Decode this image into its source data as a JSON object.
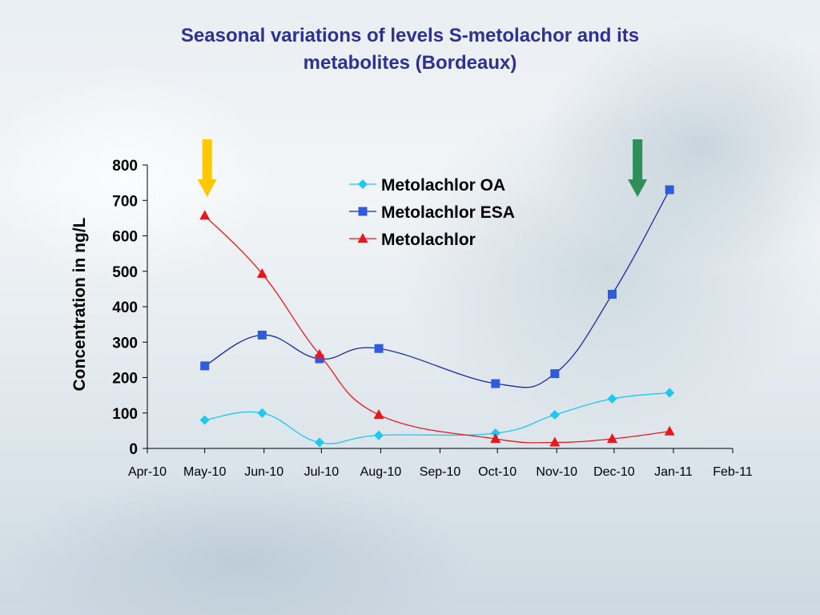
{
  "title_lines": [
    "Seasonal variations of levels S-metolachor and its",
    "metabolites (Bordeaux)"
  ],
  "colors": {
    "title": "#2e3192",
    "oa": "#1ec8f0",
    "esa_line": "#1a2a9e",
    "esa_marker": "#2f5bdc",
    "metolachlor": "#e8171d",
    "arrow_yellow": "#ffc800",
    "arrow_green": "#2e8f5a"
  },
  "arrows": [
    {
      "name": "yellow-arrow",
      "color": "#ffc800",
      "date": "2010-05-01"
    },
    {
      "name": "green-arrow",
      "color": "#2e8f5a",
      "date": "2010-12-12"
    }
  ],
  "chart_data": {
    "type": "line",
    "title": "Seasonal variations of levels S-metolachor and its metabolites (Bordeaux)",
    "xlabel": "",
    "ylabel": "Concentration in ng/L",
    "ylim": [
      0,
      800
    ],
    "yticks": [
      0,
      100,
      200,
      300,
      400,
      500,
      600,
      700,
      800
    ],
    "xticks": [
      {
        "date": "2010-04-01",
        "label": "Apr-10"
      },
      {
        "date": "2010-05-01",
        "label": "May-10"
      },
      {
        "date": "2010-06-01",
        "label": "Jun-10"
      },
      {
        "date": "2010-07-01",
        "label": "Jul-10"
      },
      {
        "date": "2010-08-01",
        "label": "Aug-10"
      },
      {
        "date": "2010-09-01",
        "label": "Sep-10"
      },
      {
        "date": "2010-10-01",
        "label": "Oct-10"
      },
      {
        "date": "2010-11-01",
        "label": "Nov-10"
      },
      {
        "date": "2010-12-01",
        "label": "Dec-10"
      },
      {
        "date": "2011-01-01",
        "label": "Jan-11"
      },
      {
        "date": "2011-02-01",
        "label": "Feb-11"
      }
    ],
    "xlim": [
      "2010-04-01",
      "2011-02-01"
    ],
    "grid": false,
    "legend_position": "top-center",
    "series": [
      {
        "name": "Metolachlor OA",
        "marker": "diamond",
        "points": [
          {
            "x": "2010-05-01",
            "y": 80
          },
          {
            "x": "2010-05-31",
            "y": 100
          },
          {
            "x": "2010-06-30",
            "y": 17
          },
          {
            "x": "2010-07-31",
            "y": 37
          },
          {
            "x": "2010-09-30",
            "y": 43
          },
          {
            "x": "2010-10-31",
            "y": 95
          },
          {
            "x": "2010-11-30",
            "y": 140
          },
          {
            "x": "2010-12-30",
            "y": 157
          }
        ]
      },
      {
        "name": "Metolachlor ESA",
        "marker": "square",
        "points": [
          {
            "x": "2010-05-01",
            "y": 233
          },
          {
            "x": "2010-05-31",
            "y": 320
          },
          {
            "x": "2010-06-30",
            "y": 253
          },
          {
            "x": "2010-07-31",
            "y": 282
          },
          {
            "x": "2010-09-30",
            "y": 183
          },
          {
            "x": "2010-10-31",
            "y": 211
          },
          {
            "x": "2010-11-30",
            "y": 435
          },
          {
            "x": "2010-12-30",
            "y": 730
          }
        ]
      },
      {
        "name": "Metolachlor",
        "marker": "triangle",
        "points": [
          {
            "x": "2010-05-01",
            "y": 657
          },
          {
            "x": "2010-05-31",
            "y": 493
          },
          {
            "x": "2010-06-30",
            "y": 265
          },
          {
            "x": "2010-07-31",
            "y": 95
          },
          {
            "x": "2010-09-30",
            "y": 27
          },
          {
            "x": "2010-10-31",
            "y": 17
          },
          {
            "x": "2010-11-30",
            "y": 27
          },
          {
            "x": "2010-12-30",
            "y": 48
          }
        ]
      }
    ]
  }
}
